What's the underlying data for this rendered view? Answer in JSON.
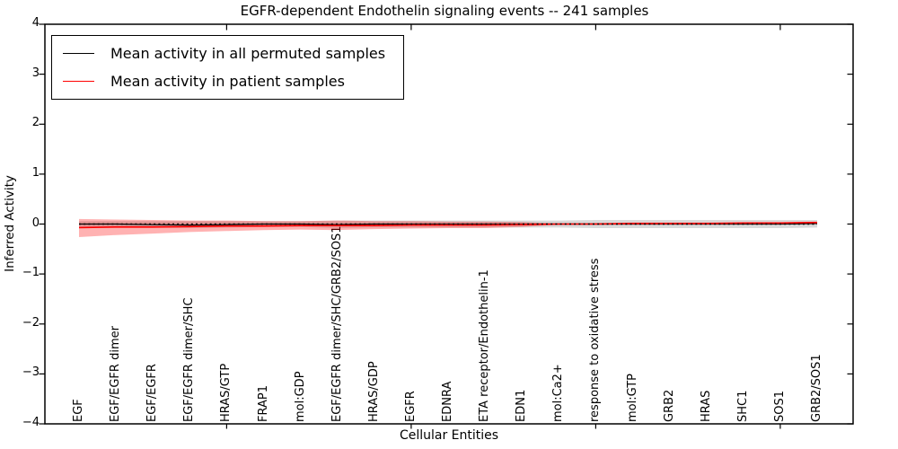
{
  "figure": {
    "title": "EGFR-dependent Endothelin signaling events -- 241 samples",
    "xlabel": "Cellular Entities",
    "ylabel": "Inferred Activity"
  },
  "legend": {
    "items": [
      {
        "label": "Mean activity in all permuted samples",
        "color": "#000000"
      },
      {
        "label": "Mean activity in patient samples",
        "color": "#ff0000"
      }
    ]
  },
  "chart_data": {
    "type": "line",
    "title": "EGFR-dependent Endothelin signaling events -- 241 samples",
    "xlabel": "Cellular Entities",
    "ylabel": "Inferred Activity",
    "ylim": [
      -4,
      4
    ],
    "yticks": [
      -4,
      -3,
      -2,
      -1,
      0,
      1,
      2,
      3,
      4
    ],
    "ytick_labels": [
      "−4",
      "−3",
      "−2",
      "−1",
      "0",
      "1",
      "2",
      "3",
      "4"
    ],
    "xtick_mark_indices": [
      4,
      9,
      14,
      19
    ],
    "grid": false,
    "legend_position": "upper left",
    "categories": [
      "EGF",
      "EGF/EGFR dimer",
      "EGF/EGFR",
      "EGF/EGFR dimer/SHC",
      "HRAS/GTP",
      "FRAP1",
      "mol:GDP",
      "EGF/EGFR dimer/SHC/GRB2/SOS1",
      "HRAS/GDP",
      "EGFR",
      "EDNRA",
      "ETA receptor/Endothelin-1",
      "EDN1",
      "mol:Ca2+",
      "response to oxidative stress",
      "mol:GTP",
      "GRB2",
      "HRAS",
      "SHC1",
      "SOS1",
      "GRB2/SOS1"
    ],
    "series": [
      {
        "name": "Mean activity in all permuted samples",
        "color": "#000000",
        "line_width": 1.3,
        "band_color": "rgba(0,0,0,0.15)",
        "values": [
          0,
          0,
          -0.01,
          -0.02,
          -0.01,
          0,
          0,
          -0.01,
          0,
          0,
          0,
          0,
          0,
          0,
          0,
          0,
          0,
          0,
          0,
          0,
          0.01
        ],
        "band_upper": [
          0.06,
          0.06,
          0.06,
          0.06,
          0.06,
          0.06,
          0.06,
          0.07,
          0.07,
          0.07,
          0.07,
          0.07,
          0.07,
          0.07,
          0.08,
          0.08,
          0.08,
          0.08,
          0.08,
          0.08,
          0.08
        ],
        "band_lower": [
          -0.06,
          -0.06,
          -0.07,
          -0.08,
          -0.07,
          -0.06,
          -0.06,
          -0.08,
          -0.07,
          -0.07,
          -0.07,
          -0.07,
          -0.07,
          -0.07,
          -0.08,
          -0.08,
          -0.08,
          -0.08,
          -0.08,
          -0.08,
          -0.07
        ]
      },
      {
        "name": "Mean activity in patient samples",
        "color": "#ff0000",
        "line_width": 1.6,
        "band_color": "rgba(255,0,0,0.3)",
        "values": [
          -0.07,
          -0.06,
          -0.06,
          -0.05,
          -0.04,
          -0.04,
          -0.03,
          -0.03,
          -0.03,
          -0.02,
          -0.02,
          -0.02,
          -0.01,
          0,
          0,
          0.01,
          0.01,
          0.01,
          0.02,
          0.02,
          0.03
        ],
        "band_upper": [
          0.1,
          0.09,
          0.08,
          0.07,
          0.07,
          0.06,
          0.06,
          0.07,
          0.06,
          0.06,
          0.05,
          0.05,
          0.04,
          0.01,
          0.02,
          0.03,
          0.03,
          0.03,
          0.04,
          0.04,
          0.05
        ],
        "band_lower": [
          -0.26,
          -0.22,
          -0.19,
          -0.16,
          -0.14,
          -0.12,
          -0.11,
          -0.12,
          -0.1,
          -0.09,
          -0.08,
          -0.08,
          -0.06,
          -0.01,
          -0.01,
          -0.01,
          -0.01,
          0,
          0,
          0,
          0.01
        ]
      }
    ],
    "reference_line": {
      "y": 0,
      "style": "dotted",
      "color": "#000000"
    }
  }
}
